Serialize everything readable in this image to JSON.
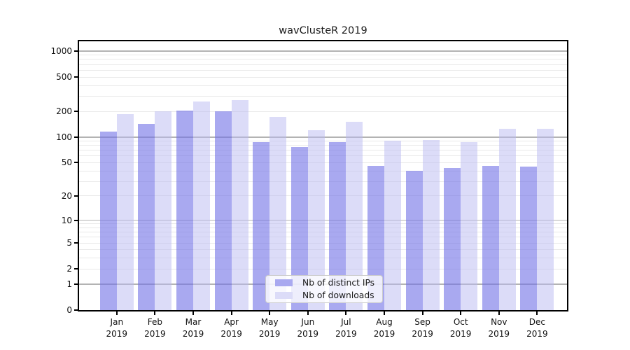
{
  "chart_data": {
    "type": "bar",
    "title": "wavClusteR 2019",
    "categories": [
      "Jan 2019",
      "Feb 2019",
      "Mar 2019",
      "Apr 2019",
      "May 2019",
      "Jun 2019",
      "Jul 2019",
      "Aug 2019",
      "Sep 2019",
      "Oct 2019",
      "Nov 2019",
      "Dec 2019"
    ],
    "series": [
      {
        "name": "Nb of distinct IPs",
        "color": "#a9a9f0",
        "bar_rgba": "rgba(112,112,230,0.6)",
        "values": [
          115,
          144,
          203,
          200,
          88,
          76,
          88,
          46,
          40,
          43,
          46,
          45
        ]
      },
      {
        "name": "Nb of downloads",
        "color": "#dcdcf8",
        "bar_rgba": "rgba(185,185,241,0.5)",
        "values": [
          187,
          200,
          258,
          270,
          172,
          120,
          152,
          90,
          93,
          87,
          125,
          126
        ]
      }
    ],
    "xlabel": "",
    "ylabel": "",
    "y_ticks": [
      0,
      1,
      2,
      5,
      10,
      20,
      50,
      100,
      200,
      500,
      1000
    ],
    "ylim": [
      0,
      1300
    ],
    "yscale": "log1p",
    "grid": true,
    "gridline_minor_color": "#e9e9e9",
    "gridline_major_color": "#b3b3b3",
    "legend_position": "lower center",
    "legend_entries": [
      "Nb of distinct IPs",
      "Nb of downloads"
    ]
  }
}
